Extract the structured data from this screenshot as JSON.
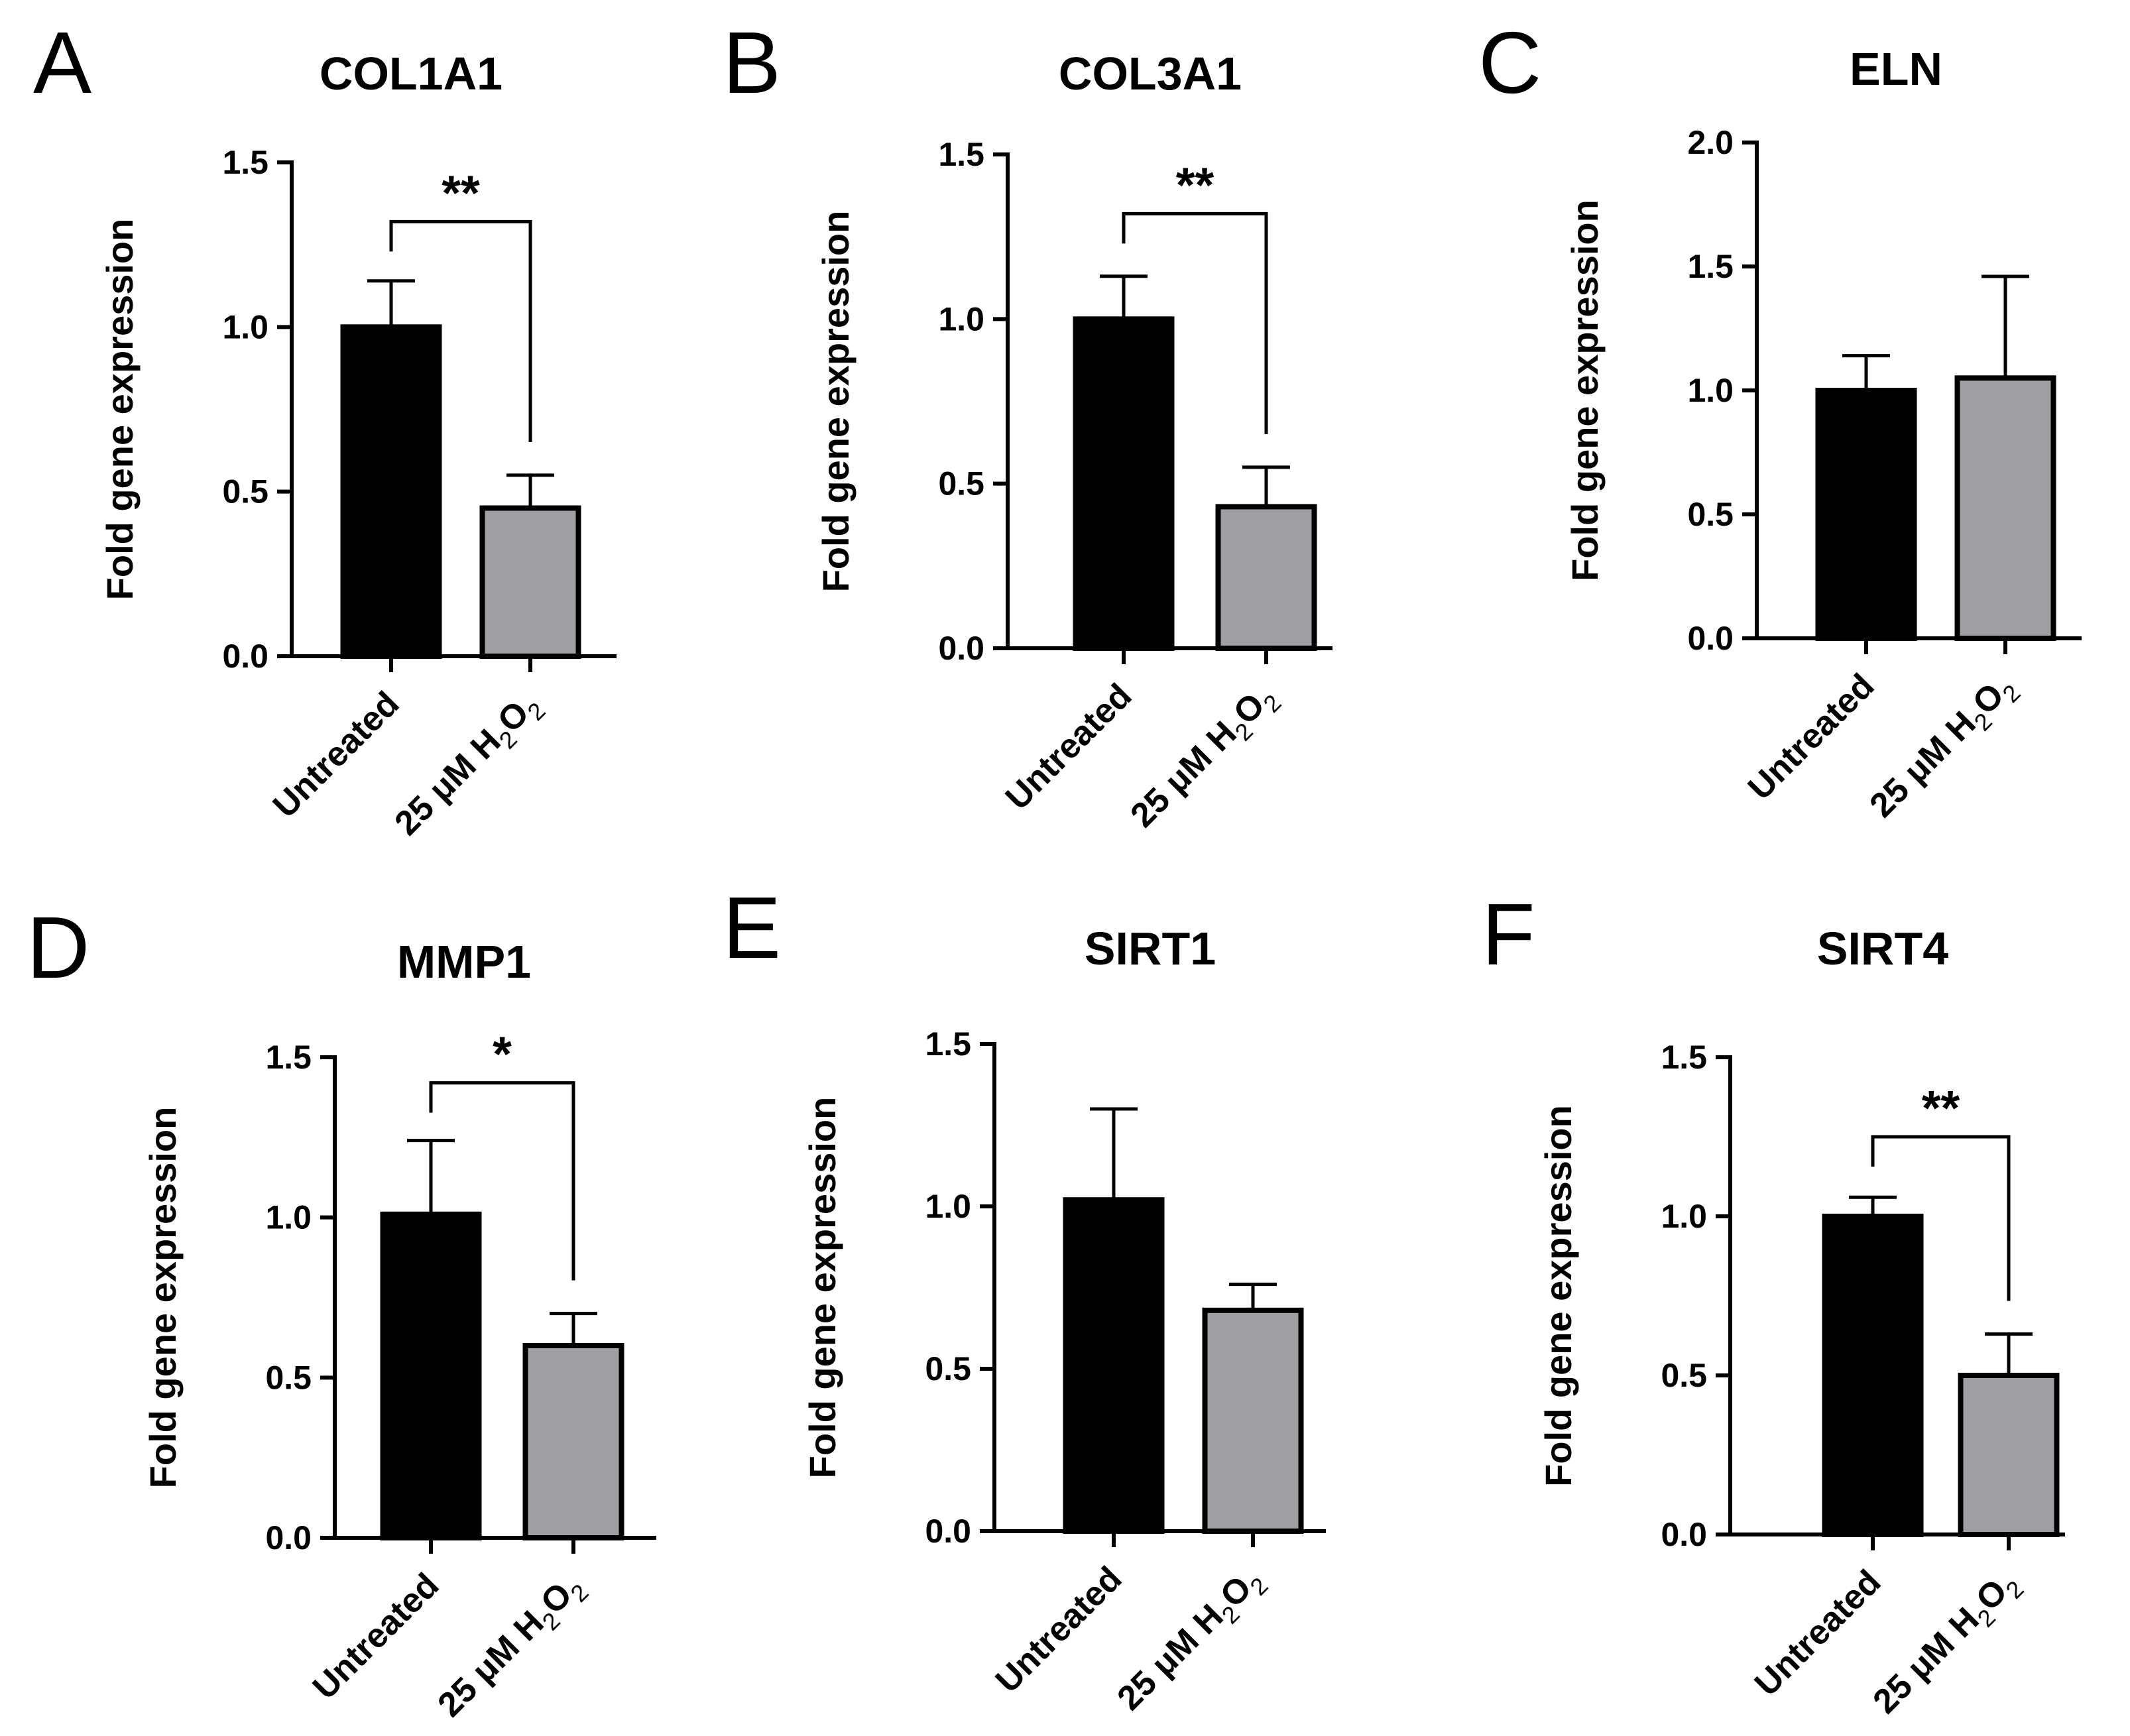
{
  "figure": {
    "panels": [
      "A",
      "B",
      "C",
      "D",
      "E",
      "F"
    ]
  },
  "colors": {
    "untreated": "#000000",
    "treated": "#a0a0a4",
    "axis": "#000000"
  },
  "chart_data": [
    {
      "panel": "A",
      "type": "bar",
      "title": "COL1A1",
      "xlabel": "",
      "ylabel": "Fold gene expression",
      "ylim": [
        0,
        1.5
      ],
      "yticks": [
        "0.0",
        "0.5",
        "1.0",
        "1.5"
      ],
      "ytick_values": [
        0,
        0.5,
        1.0,
        1.5
      ],
      "categories": [
        "Untreated",
        "25 μM H2O2"
      ],
      "category_parts": [
        {
          "text": "Untreated"
        },
        {
          "prefix": "25 μM H",
          "sub1": "2",
          "mid": "O",
          "sub2": "2"
        }
      ],
      "values": [
        1.0,
        0.45
      ],
      "errors": [
        0.14,
        0.1
      ],
      "significance": "**",
      "sig_bar_y": 1.32
    },
    {
      "panel": "B",
      "type": "bar",
      "title": "COL3A1",
      "xlabel": "",
      "ylabel": "Fold gene expression",
      "ylim": [
        0,
        1.5
      ],
      "yticks": [
        "0.0",
        "0.5",
        "1.0",
        "1.5"
      ],
      "ytick_values": [
        0,
        0.5,
        1.0,
        1.5
      ],
      "categories": [
        "Untreated",
        "25 μM H2O2"
      ],
      "category_parts": [
        {
          "text": "Untreated"
        },
        {
          "prefix": "25 μM H",
          "sub1": "2",
          "mid": "O",
          "sub2": "2"
        }
      ],
      "values": [
        1.0,
        0.43
      ],
      "errors": [
        0.13,
        0.12
      ],
      "significance": "**",
      "sig_bar_y": 1.32
    },
    {
      "panel": "C",
      "type": "bar",
      "title": "ELN",
      "xlabel": "",
      "ylabel": "Fold gene expression",
      "ylim": [
        0,
        2.0
      ],
      "yticks": [
        "0.0",
        "0.5",
        "1.0",
        "1.5",
        "2.0"
      ],
      "ytick_values": [
        0,
        0.5,
        1.0,
        1.5,
        2.0
      ],
      "categories": [
        "Untreated",
        "25 μM H2O2"
      ],
      "category_parts": [
        {
          "text": "Untreated"
        },
        {
          "prefix": "25 μM H",
          "sub1": "2",
          "mid": "O",
          "sub2": "2"
        }
      ],
      "values": [
        1.0,
        1.05
      ],
      "errors": [
        0.14,
        0.41
      ],
      "significance": "",
      "sig_bar_y": null
    },
    {
      "panel": "D",
      "type": "bar",
      "title": "MMP1",
      "xlabel": "",
      "ylabel": "Fold gene expression",
      "ylim": [
        0,
        1.5
      ],
      "yticks": [
        "0.0",
        "0.5",
        "1.0",
        "1.5"
      ],
      "ytick_values": [
        0,
        0.5,
        1.0,
        1.5
      ],
      "categories": [
        "Untreated",
        "25 μM H2O2"
      ],
      "category_parts": [
        {
          "text": "Untreated"
        },
        {
          "prefix": "25 μM H",
          "sub1": "2",
          "mid": "O",
          "sub2": "2"
        }
      ],
      "values": [
        1.01,
        0.6
      ],
      "errors": [
        0.23,
        0.1
      ],
      "significance": "*",
      "sig_bar_y": 1.42
    },
    {
      "panel": "E",
      "type": "bar",
      "title": "SIRT1",
      "xlabel": "",
      "ylabel": "Fold gene expression",
      "ylim": [
        0,
        1.5
      ],
      "yticks": [
        "0.0",
        "0.5",
        "1.0",
        "1.5"
      ],
      "ytick_values": [
        0,
        0.5,
        1.0,
        1.5
      ],
      "categories": [
        "Untreated",
        "25 μM H2O2"
      ],
      "category_parts": [
        {
          "text": "Untreated"
        },
        {
          "prefix": "25 μM H",
          "sub1": "2",
          "mid": "O",
          "sub2": "2"
        }
      ],
      "values": [
        1.02,
        0.68
      ],
      "errors": [
        0.28,
        0.08
      ],
      "significance": "",
      "sig_bar_y": null
    },
    {
      "panel": "F",
      "type": "bar",
      "title": "SIRT4",
      "xlabel": "",
      "ylabel": "Fold gene expression",
      "ylim": [
        0,
        1.5
      ],
      "yticks": [
        "0.0",
        "0.5",
        "1.0",
        "1.5"
      ],
      "ytick_values": [
        0,
        0.5,
        1.0,
        1.5
      ],
      "categories": [
        "Untreated",
        "25 μM H2O2"
      ],
      "category_parts": [
        {
          "text": "Untreated"
        },
        {
          "prefix": "25 μM H",
          "sub1": "2",
          "mid": "O",
          "sub2": "2"
        }
      ],
      "values": [
        1.0,
        0.5
      ],
      "errors": [
        0.06,
        0.13
      ],
      "significance": "**",
      "sig_bar_y": 1.25
    }
  ]
}
